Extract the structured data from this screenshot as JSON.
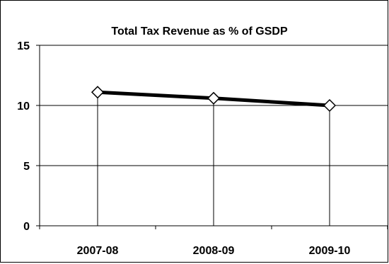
{
  "chart_data": {
    "type": "line",
    "title": "Total Tax Revenue as % of GSDP",
    "categories": [
      "2007-08",
      "2008-09",
      "2009-10"
    ],
    "series": [
      {
        "values": [
          11.1,
          10.6,
          10.0
        ]
      }
    ],
    "ylim": [
      0,
      15
    ],
    "yticks": [
      0,
      5,
      10,
      15
    ],
    "grid": true,
    "drop_lines": true,
    "legend": "none",
    "colors": {
      "line": "#000000",
      "marker_fill": "#ffffff",
      "background": "#ffffff"
    }
  }
}
